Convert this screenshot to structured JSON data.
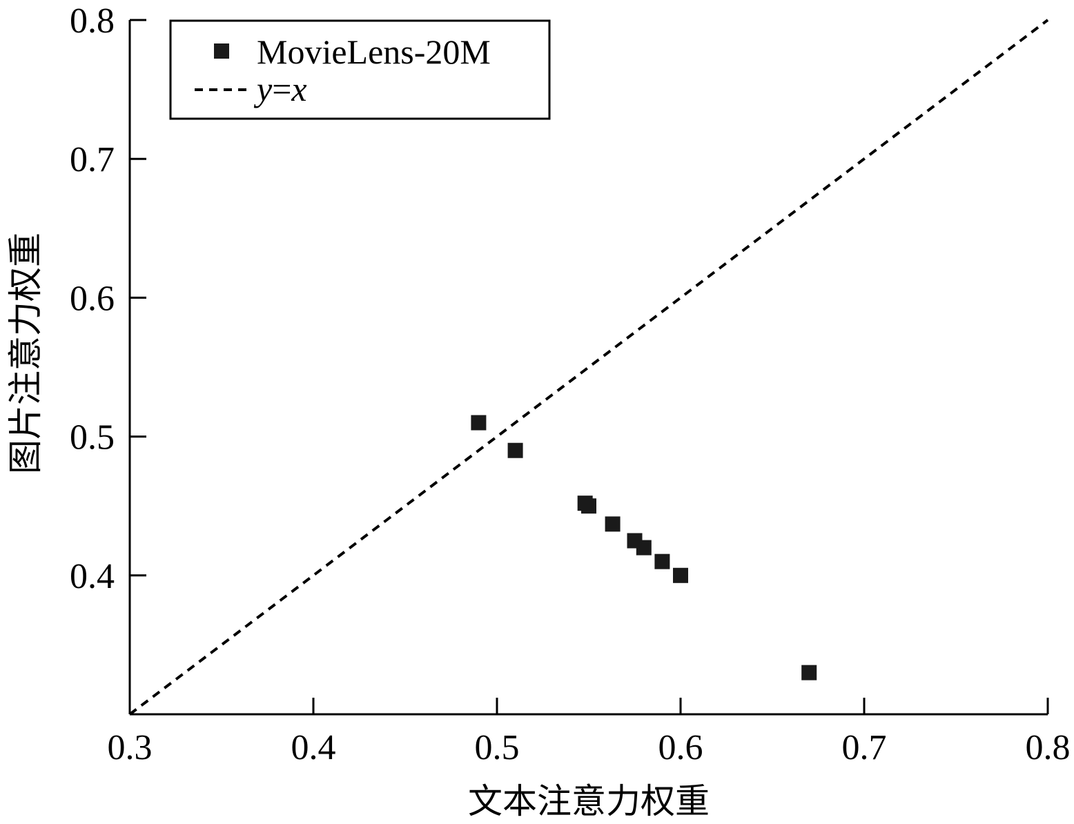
{
  "chart_data": {
    "type": "scatter",
    "xlabel": "文本注意力权重",
    "ylabel": "图片注意力权重",
    "xlim": [
      0.3,
      0.8
    ],
    "ylim": [
      0.3,
      0.8
    ],
    "x_ticks": [
      "0.3",
      "0.4",
      "0.5",
      "0.6",
      "0.7",
      "0.8"
    ],
    "y_ticks": [
      "0.4",
      "0.5",
      "0.6",
      "0.7",
      "0.8"
    ],
    "grid": false,
    "legend_position": "top-left",
    "series": [
      {
        "name": "MovieLens-20M",
        "marker": "square",
        "color": "#1a1a1a",
        "points": [
          {
            "x": 0.49,
            "y": 0.51
          },
          {
            "x": 0.51,
            "y": 0.49
          },
          {
            "x": 0.548,
            "y": 0.452
          },
          {
            "x": 0.55,
            "y": 0.45
          },
          {
            "x": 0.563,
            "y": 0.437
          },
          {
            "x": 0.575,
            "y": 0.425
          },
          {
            "x": 0.58,
            "y": 0.42
          },
          {
            "x": 0.59,
            "y": 0.41
          },
          {
            "x": 0.6,
            "y": 0.4
          },
          {
            "x": 0.67,
            "y": 0.33
          }
        ]
      }
    ],
    "reference_line": {
      "style": "dashed",
      "color": "#000000",
      "label_y": "y",
      "label_eq": "=",
      "label_x": "x"
    }
  }
}
